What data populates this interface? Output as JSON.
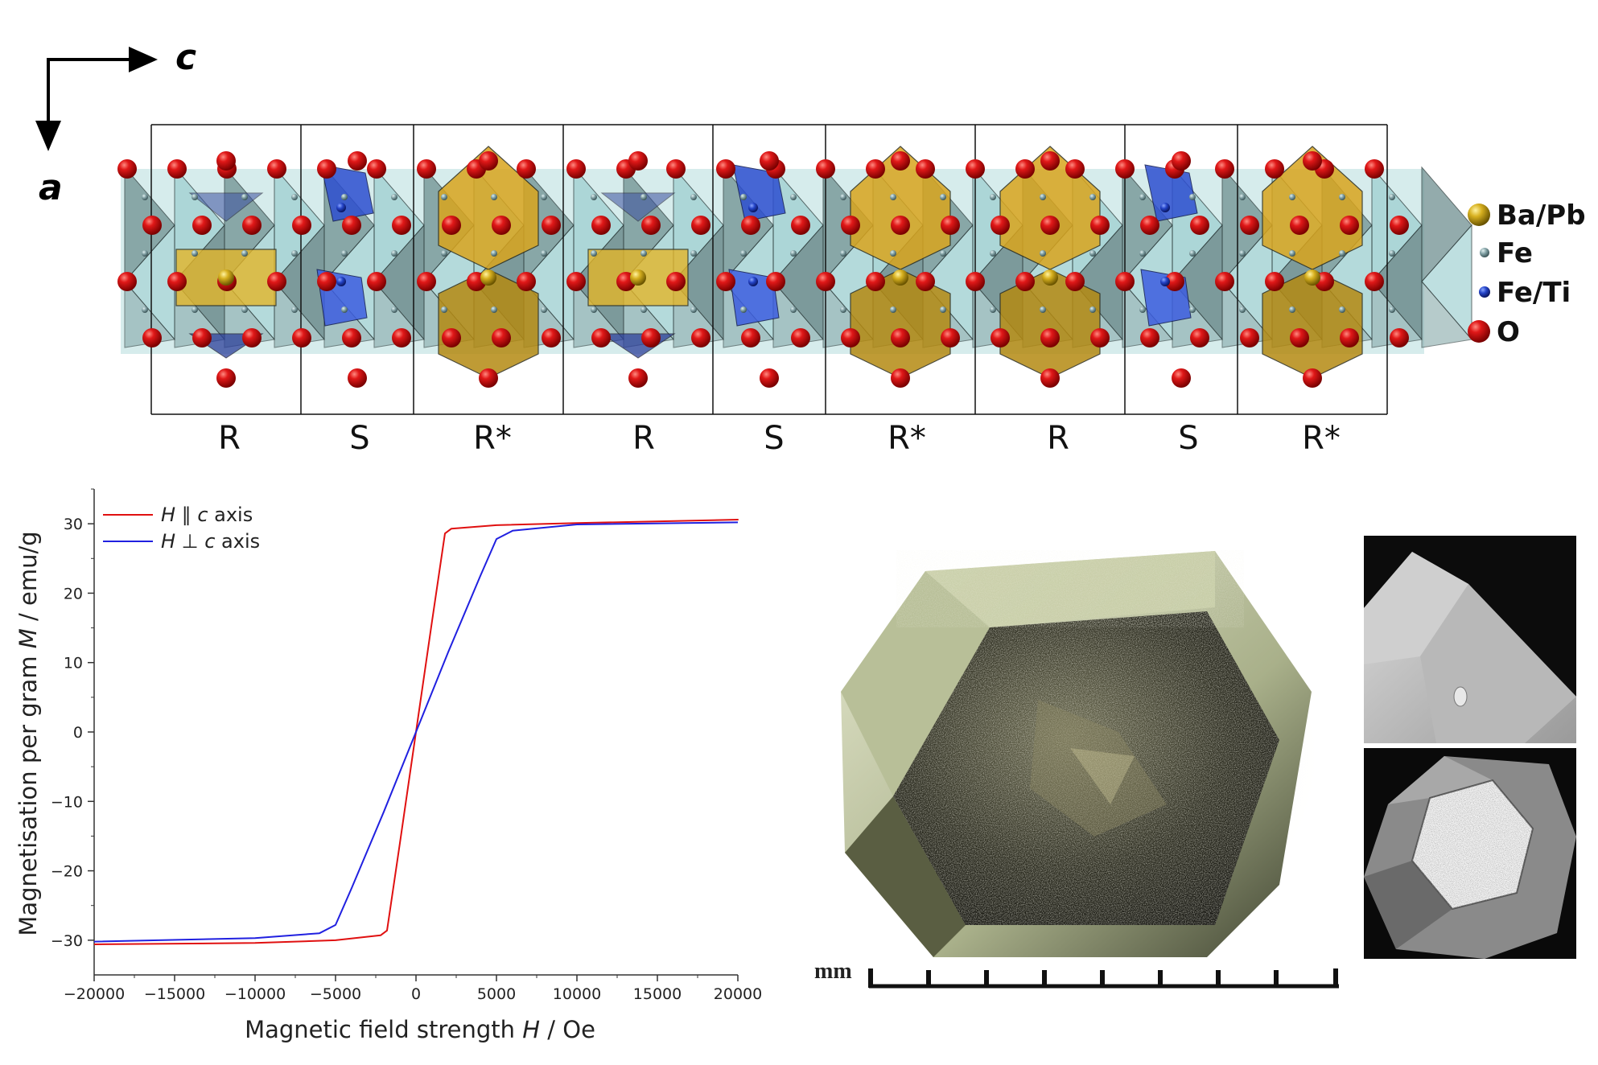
{
  "structure": {
    "axes": {
      "horizontal": "c",
      "vertical": "a"
    },
    "blocks": [
      "R",
      "S",
      "R*",
      "R",
      "S",
      "R*",
      "R",
      "S",
      "R*"
    ],
    "legend": [
      {
        "label": "Ba/Pb",
        "color": "#c9a21a"
      },
      {
        "label": "Fe",
        "color": "#6f8f95"
      },
      {
        "label": "Fe/Ti",
        "color": "#1f3fb5"
      },
      {
        "label": "O",
        "color": "#d40f0f"
      }
    ],
    "colors": {
      "oxygen": "#d41010",
      "octahedron": "#a8d6d8",
      "octahedron_dark": "#5e7f80",
      "bipyramid": "#d9a51e",
      "tetrahedron": "#2e4fd0"
    }
  },
  "chart_data": {
    "type": "line",
    "xlabel_parts": [
      "Magnetic field strength ",
      "H",
      " / Oe"
    ],
    "ylabel_parts": [
      "Magnetisation per gram ",
      "M",
      " / emu/g"
    ],
    "xlim": [
      -20000,
      20000
    ],
    "ylim": [
      -35,
      35
    ],
    "xticks": [
      -20000,
      -15000,
      -10000,
      -5000,
      0,
      5000,
      10000,
      15000,
      20000
    ],
    "xtick_labels": [
      "−20000",
      "−15000",
      "−10000",
      "−5000",
      "0",
      "5000",
      "10000",
      "15000",
      "20000"
    ],
    "yticks": [
      -30,
      -20,
      -10,
      0,
      10,
      20,
      30
    ],
    "ytick_labels": [
      "−30",
      "−20",
      "−10",
      "0",
      "10",
      "20",
      "30"
    ],
    "legend_position": "top-left",
    "series": [
      {
        "legend_parts": [
          "H",
          " ∥ ",
          "c",
          " axis"
        ],
        "color": "#e01010",
        "x": [
          -20000,
          -10000,
          -5000,
          -2200,
          -1800,
          -1000,
          0,
          1000,
          1800,
          2200,
          5000,
          10000,
          20000,
          20000,
          10000,
          5000,
          2200,
          1800,
          1000,
          0,
          -1000,
          -1800,
          -2200,
          -5000,
          -10000,
          -20000
        ],
        "y": [
          -30.6,
          -30.4,
          -30.0,
          -29.3,
          -28.6,
          -16,
          0,
          16,
          28.6,
          29.3,
          29.8,
          30.1,
          30.6,
          30.6,
          30.1,
          29.8,
          29.3,
          28.6,
          16,
          0,
          -16,
          -28.6,
          -29.3,
          -30.0,
          -30.4,
          -30.6
        ]
      },
      {
        "legend_parts": [
          "H",
          " ⊥ ",
          "c",
          " axis"
        ],
        "color": "#2020e0",
        "x": [
          -20000,
          -10000,
          -6000,
          -5000,
          -4000,
          -2000,
          0,
          2000,
          4000,
          5000,
          6000,
          10000,
          20000
        ],
        "y": [
          -30.2,
          -29.7,
          -29.0,
          -27.8,
          -22.5,
          -11.5,
          0,
          11.5,
          22.5,
          27.8,
          29.0,
          29.9,
          30.2
        ]
      }
    ]
  },
  "photo": {
    "scalebar_label": "mm"
  }
}
